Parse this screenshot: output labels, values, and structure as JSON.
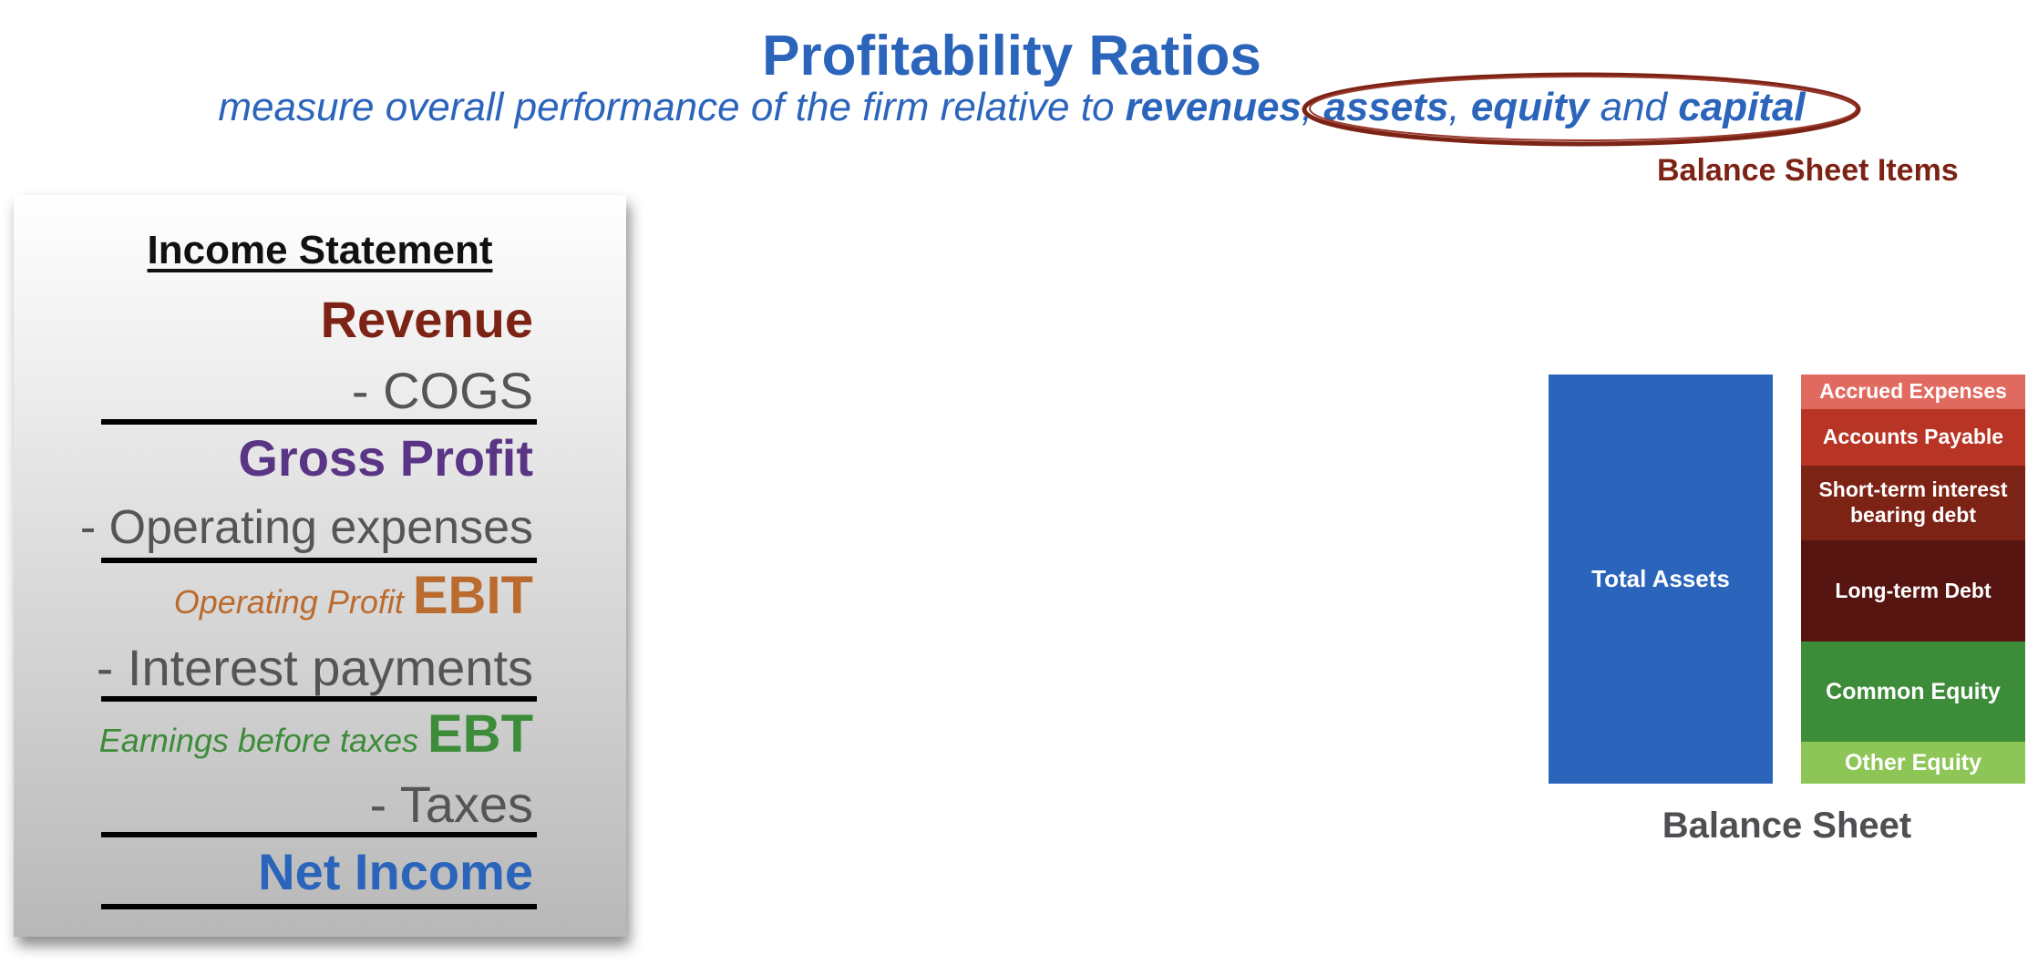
{
  "title": "Profitability Ratios",
  "subtitle": {
    "prefix": "measure overall performance of the firm relative to ",
    "revenues": "revenues",
    "comma1": ", ",
    "assets": "assets",
    "comma2": ", ",
    "equity": "equity",
    "and": " and ",
    "capital": "capital"
  },
  "balance_sheet_items_label": "Balance Sheet Items",
  "income_statement": {
    "header": "Income Statement",
    "revenue": "Revenue",
    "cogs": "- COGS",
    "gross_profit": "Gross Profit",
    "operating_expenses": "- Operating expenses",
    "operating_profit_label": "Operating Profit ",
    "ebit": "EBIT",
    "interest_payments": "- Interest payments",
    "ebt_label": "Earnings before taxes ",
    "ebt": "EBT",
    "taxes": "-  Taxes",
    "net_income": "Net Income"
  },
  "balance_sheet": {
    "label": "Balance Sheet",
    "assets": "Total Assets",
    "liabilities_equity": [
      {
        "label": "Accrued Expenses",
        "color": "#e06a60"
      },
      {
        "label": "Accounts Payable",
        "color": "#b83424"
      },
      {
        "label": "Short-term interest bearing debt",
        "color": "#7d2316"
      },
      {
        "label": "Long-term Debt",
        "color": "#561510"
      },
      {
        "label": "Common Equity",
        "color": "#3d8c3a"
      },
      {
        "label": "Other Equity",
        "color": "#8dc556"
      }
    ],
    "assets_color": "#2b64bb"
  },
  "colors": {
    "blue": "#2b64bb",
    "dark_red": "#7d2316",
    "purple": "#5b3585",
    "orange": "#bb6b2e",
    "green": "#3d8c3a"
  }
}
